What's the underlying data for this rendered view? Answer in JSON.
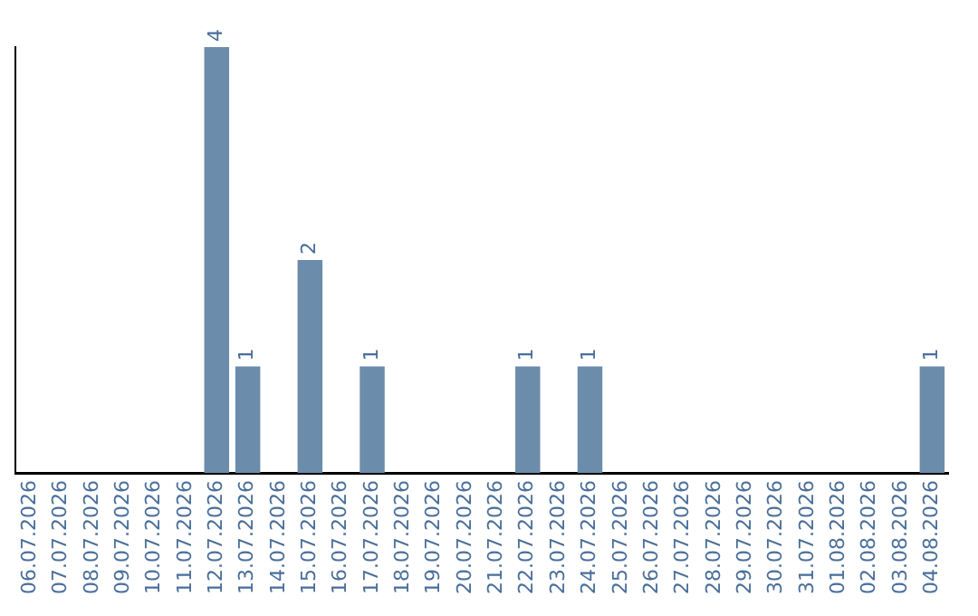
{
  "chart_data": {
    "type": "bar",
    "categories": [
      "06.07.2026",
      "07.07.2026",
      "08.07.2026",
      "09.07.2026",
      "10.07.2026",
      "11.07.2026",
      "12.07.2026",
      "13.07.2026",
      "14.07.2026",
      "15.07.2026",
      "16.07.2026",
      "17.07.2026",
      "18.07.2026",
      "19.07.2026",
      "20.07.2026",
      "21.07.2026",
      "22.07.2026",
      "23.07.2026",
      "24.07.2026",
      "25.07.2026",
      "26.07.2026",
      "27.07.2026",
      "28.07.2026",
      "29.07.2026",
      "30.07.2026",
      "31.07.2026",
      "01.08.2026",
      "02.08.2026",
      "03.08.2026",
      "04.08.2026"
    ],
    "values": [
      0,
      0,
      0,
      0,
      0,
      0,
      4,
      1,
      0,
      2,
      0,
      1,
      0,
      0,
      0,
      0,
      1,
      0,
      1,
      0,
      0,
      0,
      0,
      0,
      0,
      0,
      0,
      0,
      0,
      1
    ],
    "value_labels": [
      null,
      null,
      null,
      null,
      null,
      null,
      "4",
      "1",
      null,
      "2",
      null,
      "1",
      null,
      null,
      null,
      null,
      "1",
      null,
      "1",
      null,
      null,
      null,
      null,
      null,
      null,
      null,
      null,
      null,
      null,
      "1"
    ],
    "color": "#6b8cab",
    "grid": false,
    "legend": false,
    "tick_labels": "x"
  }
}
